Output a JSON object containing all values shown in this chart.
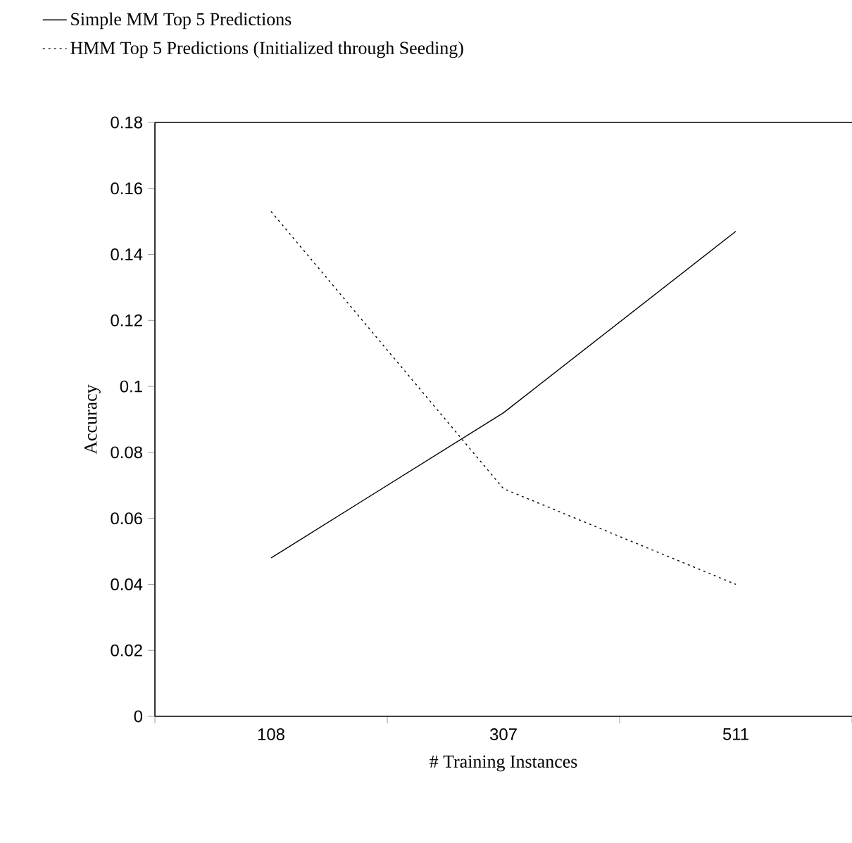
{
  "chart_data": {
    "type": "line",
    "xlabel": "# Training Instances",
    "ylabel": "Accuracy",
    "categories": [
      "108",
      "307",
      "511"
    ],
    "series": [
      {
        "name": "Simple MM Top 5 Predictions",
        "color": "#000000",
        "line_style": "solid",
        "values": [
          0.048,
          0.092,
          0.147
        ]
      },
      {
        "name": "HMM Top 5 Predictions (Initialized through Seeding)",
        "color": "#000000",
        "line_style": "dotted",
        "values": [
          0.153,
          0.069,
          0.04
        ]
      }
    ],
    "ylim": [
      0,
      0.18
    ],
    "yticks": [
      0,
      0.02,
      0.04,
      0.06,
      0.08,
      0.1,
      0.12,
      0.14,
      0.16,
      0.18
    ],
    "grid": false,
    "legend": "top"
  }
}
